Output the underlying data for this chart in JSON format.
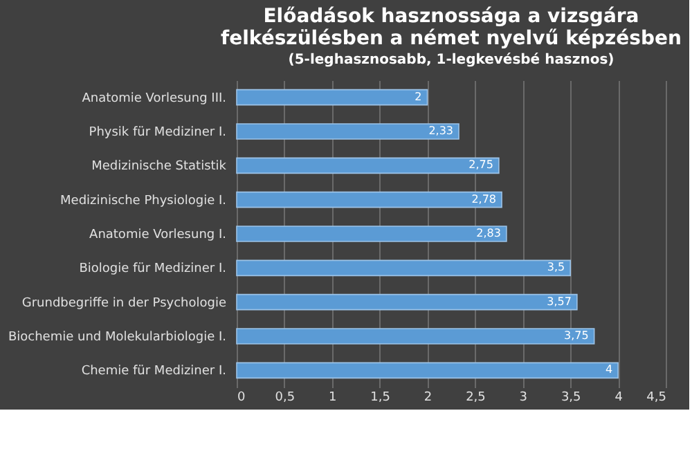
{
  "chart_data": {
    "type": "bar",
    "orientation": "horizontal",
    "title": "Előadások hasznossága a vizsgára felkészülésben a német nyelvű képzésben",
    "subtitle": "(5-leghasznosabb, 1-legkevésbé hasznos)",
    "categories": [
      "Anatomie Vorlesung III.",
      "Physik für Mediziner I.",
      "Medizinische Statistik",
      "Medizinische Physiologie I.",
      "Anatomie Vorlesung I.",
      "Biologie für Mediziner I.",
      "Grundbegriffe in der Psychologie",
      "Biochemie und Molekularbiologie I.",
      "Chemie für Mediziner I."
    ],
    "values": [
      2,
      2.33,
      2.75,
      2.78,
      2.83,
      3.5,
      3.57,
      3.75,
      4
    ],
    "value_labels": [
      "2",
      "2,33",
      "2,75",
      "2,78",
      "2,83",
      "3,5",
      "3,57",
      "3,75",
      "4"
    ],
    "color": "#5b9bd5",
    "xlim": [
      0,
      4.5
    ],
    "xticks": [
      0,
      {
        "value": 0.5,
        "label": "0,5"
      },
      1,
      {
        "value": 1.5,
        "label": "1,5"
      },
      2,
      {
        "value": 2.5,
        "label": "2,5"
      },
      3,
      {
        "value": 3.5,
        "label": "3,5"
      },
      4,
      {
        "value": 4.5,
        "label": "4,5"
      }
    ],
    "grid": "x"
  }
}
